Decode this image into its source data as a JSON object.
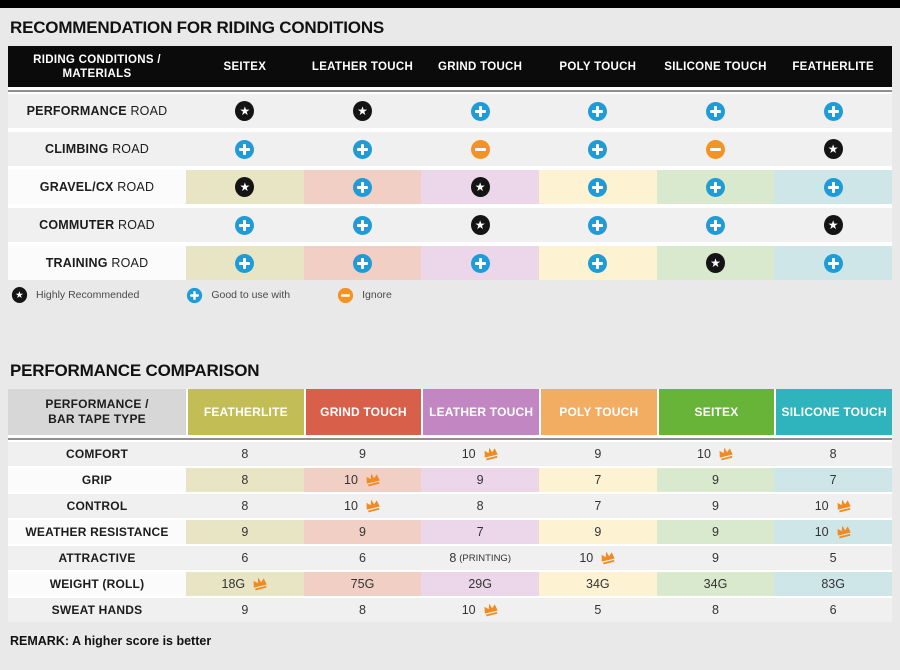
{
  "colors": {
    "page_bg": "#e9e9e9",
    "top_bar": "#000000",
    "t1_header_bg": "#0b0b0b",
    "row_gray": "#f0f0f0",
    "row_label_white": "#fbfbfb",
    "t2_label_header_bg": "#d7d7d7",
    "icon_plus": "#1f9cd8",
    "icon_minus": "#f39324",
    "icon_star": "#141414",
    "crown": "#f08a21",
    "tints": [
      "#e8e5c5",
      "#f2cfc4",
      "#ecd7ea",
      "#fdf3d2",
      "#d9e9ce",
      "#cfe6e9"
    ]
  },
  "icons": {
    "star": "highly-recommended-star-icon",
    "plus": "good-to-use-plus-icon",
    "minus": "ignore-minus-icon",
    "crown": "best-score-crown-icon"
  },
  "table1": {
    "title": "RECOMMENDATION FOR RIDING CONDITIONS",
    "header": {
      "label_line1": "RIDING CONDITIONS /",
      "label_line2": "MATERIALS"
    },
    "columns": [
      "SEITEX",
      "LEATHER TOUCH",
      "GRIND TOUCH",
      "POLY TOUCH",
      "SILICONE TOUCH",
      "FEATHERLITE"
    ],
    "rows": [
      {
        "bold": "PERFORMANCE",
        "rest": "ROAD",
        "tinted": false,
        "icons": [
          "star",
          "star",
          "plus",
          "plus",
          "plus",
          "plus"
        ]
      },
      {
        "bold": "CLIMBING",
        "rest": "ROAD",
        "tinted": false,
        "icons": [
          "plus",
          "plus",
          "minus",
          "plus",
          "minus",
          "star"
        ]
      },
      {
        "bold": "GRAVEL/CX",
        "rest": "ROAD",
        "tinted": true,
        "icons": [
          "star",
          "plus",
          "star",
          "plus",
          "plus",
          "plus"
        ]
      },
      {
        "bold": "COMMUTER",
        "rest": "ROAD",
        "tinted": false,
        "icons": [
          "plus",
          "plus",
          "star",
          "plus",
          "plus",
          "star"
        ]
      },
      {
        "bold": "TRAINING",
        "rest": "ROAD",
        "tinted": true,
        "icons": [
          "plus",
          "plus",
          "plus",
          "plus",
          "star",
          "plus"
        ]
      }
    ],
    "legend": [
      {
        "icon": "star",
        "label": "Highly Recommended"
      },
      {
        "icon": "plus",
        "label": "Good to use with"
      },
      {
        "icon": "minus",
        "label": "Ignore"
      }
    ]
  },
  "table2": {
    "title": "PERFORMANCE COMPARISON",
    "header": {
      "label_line1": "PERFORMANCE /",
      "label_line2": "BAR TAPE TYPE"
    },
    "columns": [
      {
        "label": "FEATHERLITE",
        "color": "#c2bd55"
      },
      {
        "label": "GRIND TOUCH",
        "color": "#d8604a"
      },
      {
        "label": "LEATHER TOUCH",
        "color": "#c287c2"
      },
      {
        "label": "POLY TOUCH",
        "color": "#f3ad63"
      },
      {
        "label": "SEITEX",
        "color": "#67b438"
      },
      {
        "label": "SILICONE TOUCH",
        "color": "#2fb3bc"
      }
    ],
    "rows": [
      {
        "label": "COMFORT",
        "tinted": false,
        "cells": [
          {
            "v": "8"
          },
          {
            "v": "9"
          },
          {
            "v": "10",
            "crown": true
          },
          {
            "v": "9"
          },
          {
            "v": "10",
            "crown": true
          },
          {
            "v": "8"
          }
        ]
      },
      {
        "label": "GRIP",
        "tinted": true,
        "cells": [
          {
            "v": "8"
          },
          {
            "v": "10",
            "crown": true
          },
          {
            "v": "9"
          },
          {
            "v": "7"
          },
          {
            "v": "9"
          },
          {
            "v": "7"
          }
        ]
      },
      {
        "label": "CONTROL",
        "tinted": false,
        "cells": [
          {
            "v": "8"
          },
          {
            "v": "10",
            "crown": true
          },
          {
            "v": "8"
          },
          {
            "v": "7"
          },
          {
            "v": "9"
          },
          {
            "v": "10",
            "crown": true
          }
        ]
      },
      {
        "label": "WEATHER RESISTANCE",
        "tinted": true,
        "cells": [
          {
            "v": "9"
          },
          {
            "v": "9"
          },
          {
            "v": "7"
          },
          {
            "v": "9"
          },
          {
            "v": "9"
          },
          {
            "v": "10",
            "crown": true
          }
        ]
      },
      {
        "label": "ATTRACTIVE",
        "tinted": false,
        "cells": [
          {
            "v": "6"
          },
          {
            "v": "6"
          },
          {
            "v": "8",
            "suffix": "(PRINTING)"
          },
          {
            "v": "10",
            "crown": true
          },
          {
            "v": "9"
          },
          {
            "v": "5"
          }
        ]
      },
      {
        "label": "WEIGHT (ROLL)",
        "tinted": true,
        "cells": [
          {
            "v": "18G",
            "crown": true
          },
          {
            "v": "75G"
          },
          {
            "v": "29G"
          },
          {
            "v": "34G"
          },
          {
            "v": "34G"
          },
          {
            "v": "83G"
          }
        ]
      },
      {
        "label": "SWEAT HANDS",
        "tinted": false,
        "cells": [
          {
            "v": "9"
          },
          {
            "v": "8"
          },
          {
            "v": "10",
            "crown": true
          },
          {
            "v": "5"
          },
          {
            "v": "8"
          },
          {
            "v": "6"
          }
        ]
      }
    ],
    "remark": "REMARK: A higher score is better"
  },
  "chart_data": [
    {
      "type": "table",
      "title": "RECOMMENDATION FOR RIDING CONDITIONS",
      "columns": [
        "RIDING CONDITIONS / MATERIALS",
        "SEITEX",
        "LEATHER TOUCH",
        "GRIND TOUCH",
        "POLY TOUCH",
        "SILICONE TOUCH",
        "FEATHERLITE"
      ],
      "rows": [
        [
          "PERFORMANCE ROAD",
          "highly-recommended",
          "highly-recommended",
          "good-to-use-with",
          "good-to-use-with",
          "good-to-use-with",
          "good-to-use-with"
        ],
        [
          "CLIMBING ROAD",
          "good-to-use-with",
          "good-to-use-with",
          "ignore",
          "good-to-use-with",
          "ignore",
          "highly-recommended"
        ],
        [
          "GRAVEL/CX ROAD",
          "highly-recommended",
          "good-to-use-with",
          "highly-recommended",
          "good-to-use-with",
          "good-to-use-with",
          "good-to-use-with"
        ],
        [
          "COMMUTER ROAD",
          "good-to-use-with",
          "good-to-use-with",
          "highly-recommended",
          "good-to-use-with",
          "good-to-use-with",
          "highly-recommended"
        ],
        [
          "TRAINING ROAD",
          "good-to-use-with",
          "good-to-use-with",
          "good-to-use-with",
          "good-to-use-with",
          "highly-recommended",
          "good-to-use-with"
        ]
      ],
      "legend": [
        "Highly Recommended",
        "Good to use with",
        "Ignore"
      ]
    },
    {
      "type": "table",
      "title": "PERFORMANCE COMPARISON",
      "columns": [
        "PERFORMANCE / BAR TAPE TYPE",
        "FEATHERLITE",
        "GRIND TOUCH",
        "LEATHER TOUCH",
        "POLY TOUCH",
        "SEITEX",
        "SILICONE TOUCH"
      ],
      "rows": [
        [
          "COMFORT",
          "8",
          "9",
          "10 (best)",
          "9",
          "10 (best)",
          "8"
        ],
        [
          "GRIP",
          "8",
          "10 (best)",
          "9",
          "7",
          "9",
          "7"
        ],
        [
          "CONTROL",
          "8",
          "10 (best)",
          "8",
          "7",
          "9",
          "10 (best)"
        ],
        [
          "WEATHER RESISTANCE",
          "9",
          "9",
          "7",
          "9",
          "9",
          "10 (best)"
        ],
        [
          "ATTRACTIVE",
          "6",
          "6",
          "8 (PRINTING)",
          "10 (best)",
          "9",
          "5"
        ],
        [
          "WEIGHT (ROLL)",
          "18G (best)",
          "75G",
          "29G",
          "34G",
          "34G",
          "83G"
        ],
        [
          "SWEAT HANDS",
          "9",
          "8",
          "10 (best)",
          "5",
          "8",
          "6"
        ]
      ],
      "remark": "REMARK: A higher score is better"
    }
  ]
}
